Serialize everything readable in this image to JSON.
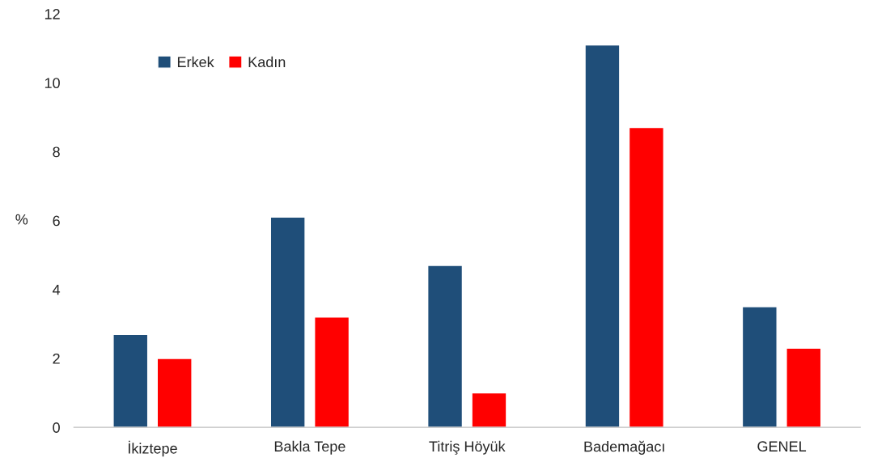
{
  "chart_data": {
    "type": "bar",
    "ylabel": "%",
    "categories": [
      "İkiztepe",
      "Bakla Tepe",
      "Titriş Höyük",
      "Bademağacı",
      "GENEL"
    ],
    "series": [
      {
        "name": "Erkek",
        "color": "#1f4e79",
        "values": [
          2.7,
          6.1,
          4.7,
          11.1,
          3.5
        ]
      },
      {
        "name": "Kadın",
        "color": "#ff0000",
        "values": [
          2.0,
          3.2,
          1.0,
          8.7,
          2.3
        ]
      }
    ],
    "ylim": [
      0,
      12
    ],
    "yticks": [
      0,
      2,
      4,
      6,
      8,
      10,
      12
    ],
    "grid": false,
    "legend": "top left"
  }
}
